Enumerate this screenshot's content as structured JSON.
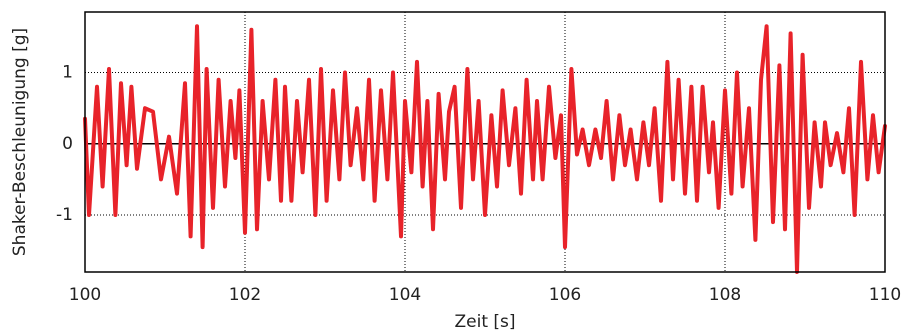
{
  "chart_data": {
    "type": "line",
    "x_label": "Zeit [s]",
    "y_label": "Shaker-Beschleunigung [g]",
    "xlim": [
      100,
      110
    ],
    "ylim": [
      -1.8,
      1.85
    ],
    "xticks": [
      100,
      102,
      104,
      106,
      108,
      110
    ],
    "yticks": [
      -1,
      0,
      1
    ],
    "grid": true,
    "series": [
      {
        "color": "#e8232a",
        "x": [
          100.0,
          100.05,
          100.15,
          100.22,
          100.3,
          100.38,
          100.45,
          100.52,
          100.58,
          100.65,
          100.75,
          100.85,
          100.95,
          101.05,
          101.15,
          101.25,
          101.32,
          101.4,
          101.47,
          101.52,
          101.6,
          101.67,
          101.75,
          101.82,
          101.88,
          101.93,
          102.0,
          102.08,
          102.15,
          102.22,
          102.3,
          102.38,
          102.45,
          102.5,
          102.58,
          102.65,
          102.72,
          102.8,
          102.88,
          102.95,
          103.02,
          103.1,
          103.18,
          103.25,
          103.32,
          103.4,
          103.48,
          103.55,
          103.62,
          103.7,
          103.78,
          103.85,
          103.95,
          104.0,
          104.08,
          104.15,
          104.22,
          104.28,
          104.35,
          104.42,
          104.5,
          104.55,
          104.62,
          104.7,
          104.78,
          104.85,
          104.92,
          105.0,
          105.08,
          105.15,
          105.22,
          105.3,
          105.38,
          105.45,
          105.52,
          105.6,
          105.65,
          105.72,
          105.8,
          105.88,
          105.95,
          106.0,
          106.08,
          106.15,
          106.22,
          106.3,
          106.38,
          106.45,
          106.52,
          106.6,
          106.68,
          106.75,
          106.82,
          106.9,
          106.98,
          107.05,
          107.12,
          107.2,
          107.28,
          107.35,
          107.42,
          107.5,
          107.58,
          107.65,
          107.72,
          107.8,
          107.85,
          107.92,
          108.0,
          108.08,
          108.15,
          108.22,
          108.3,
          108.38,
          108.45,
          108.52,
          108.6,
          108.68,
          108.75,
          108.82,
          108.9,
          108.97,
          109.05,
          109.12,
          109.2,
          109.25,
          109.32,
          109.4,
          109.48,
          109.55,
          109.62,
          109.7,
          109.78,
          109.85,
          109.92,
          110.0
        ],
        "values": [
          0.35,
          -1.0,
          0.8,
          -0.6,
          1.05,
          -1.0,
          0.85,
          -0.3,
          0.8,
          -0.35,
          0.5,
          0.45,
          -0.5,
          0.1,
          -0.7,
          0.85,
          -1.3,
          1.65,
          -1.45,
          1.05,
          -0.9,
          0.9,
          -0.6,
          0.6,
          -0.2,
          0.75,
          -1.25,
          1.6,
          -1.2,
          0.6,
          -0.5,
          0.9,
          -0.8,
          0.8,
          -0.8,
          0.6,
          -0.4,
          0.9,
          -1.0,
          1.05,
          -0.8,
          0.75,
          -0.5,
          1.0,
          -0.3,
          0.5,
          -0.5,
          0.9,
          -0.8,
          0.75,
          -0.5,
          1.0,
          -1.3,
          0.6,
          -0.4,
          1.15,
          -0.6,
          0.6,
          -1.2,
          0.7,
          -0.5,
          0.45,
          0.8,
          -0.9,
          1.05,
          -0.5,
          0.6,
          -1.0,
          0.4,
          -0.6,
          0.75,
          -0.3,
          0.5,
          -0.7,
          0.9,
          -0.5,
          0.6,
          -0.5,
          0.8,
          -0.2,
          0.4,
          -1.45,
          1.05,
          -0.15,
          0.2,
          -0.3,
          0.2,
          -0.2,
          0.6,
          -0.5,
          0.4,
          -0.3,
          0.2,
          -0.5,
          0.3,
          -0.3,
          0.5,
          -0.8,
          1.15,
          -0.5,
          0.9,
          -0.7,
          0.8,
          -0.8,
          0.8,
          -0.4,
          0.3,
          -0.9,
          0.75,
          -0.7,
          1.0,
          -0.6,
          0.5,
          -1.35,
          0.9,
          1.65,
          -1.1,
          1.1,
          -1.2,
          1.55,
          -1.8,
          1.25,
          -0.9,
          0.3,
          -0.6,
          0.3,
          -0.3,
          0.15,
          -0.4,
          0.5,
          -1.0,
          1.15,
          -0.5,
          0.4,
          -0.4,
          0.25
        ]
      }
    ]
  }
}
